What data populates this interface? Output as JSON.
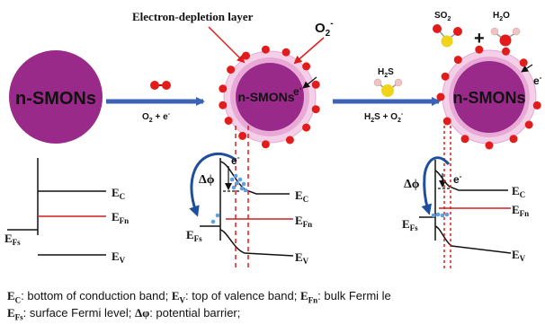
{
  "colors": {
    "particle": "#9a2a8a",
    "depletion_outer": "#f3cfe8",
    "depletion_inner": "#e9a9d6",
    "oxygen": "#e21b1b",
    "sulfur": "#f0d419",
    "hydrogen": "#f0c4c4",
    "process_arrow": "#3d63b6",
    "bend_arrow": "#1f4f9a",
    "fermi_bulk": "#d11f1f",
    "electron_dot": "#5fa0e0"
  },
  "particles": {
    "left_label": "n-SMONs",
    "middle_label": "n-SMONs",
    "right_label": "n-SMONs"
  },
  "labels": {
    "depletion_layer": "Electron-depletion layer",
    "o2_base": "O",
    "o2_sub": "2",
    "o2_sup": "-",
    "so2_label": "SO",
    "so2_sub": "2",
    "plus": "+",
    "h2o_h": "H",
    "h2o_sub": "2",
    "h2o_o": "O",
    "h2s_h": "H",
    "h2s_sub": "2",
    "h2s_s": "S",
    "electron_base": "e",
    "electron_sup": "-"
  },
  "reactions": {
    "step1_eq_a": "O",
    "step1_eq_sub": "2",
    "step1_eq_b": " + e",
    "step1_eq_sup": "-",
    "step2_eq_a": "H",
    "step2_eq_sub1": "2",
    "step2_eq_b": "S + O",
    "step2_eq_sub2": "2",
    "step2_eq_sup": "-"
  },
  "bands": {
    "ec": "E",
    "ec_sub": "C",
    "efn": "E",
    "efn_sub": "Fn",
    "ev": "E",
    "ev_sub": "V",
    "efs": "E",
    "efs_sub": "Fs",
    "delta_phi": "Δϕ"
  },
  "legend": {
    "line1": [
      {
        "b": "E",
        "sub": "C",
        "t": ": bottom of conduction band; "
      },
      {
        "b": "E",
        "sub": "V",
        "t": ": top of valence band; "
      },
      {
        "b": "E",
        "sub": "Fn",
        "t": ": bulk Fermi le"
      }
    ],
    "line2": [
      {
        "b": "E",
        "sub": "Fs",
        "t": ": surface Fermi level; "
      },
      {
        "b": "Δφ",
        "sub": "",
        "t": ": potential barrier;"
      }
    ]
  }
}
